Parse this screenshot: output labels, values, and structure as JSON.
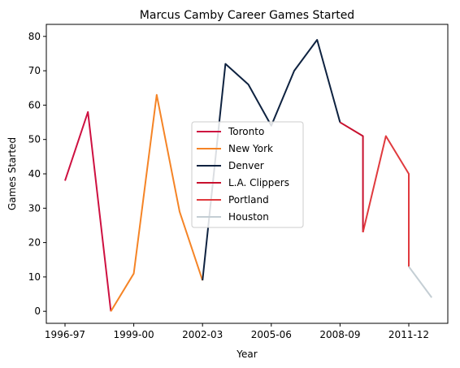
{
  "chart_data": {
    "type": "line",
    "title": "Marcus Camby Career Games Started",
    "xlabel": "Year",
    "ylabel": "Games Started",
    "x": [
      "1996-97",
      "1997-98",
      "1998-99",
      "1999-00",
      "2000-01",
      "2001-02",
      "2002-03",
      "2003-04",
      "2004-05",
      "2005-06",
      "2006-07",
      "2007-08",
      "2008-09",
      "2009-10",
      "2010-11",
      "2011-12",
      "2012-13"
    ],
    "xticks": [
      "1996-97",
      "1999-00",
      "2002-03",
      "2005-06",
      "2008-09",
      "2011-12"
    ],
    "yticks": [
      0,
      10,
      20,
      30,
      40,
      50,
      60,
      70,
      80
    ],
    "ylim": [
      -3.5,
      83.5
    ],
    "grid": false,
    "legend_position": "center",
    "series": [
      {
        "name": "Toronto",
        "color": "#ce1141",
        "points": [
          [
            "1996-97",
            38
          ],
          [
            "1997-98",
            58
          ],
          [
            "1998-99",
            0
          ]
        ]
      },
      {
        "name": "New York",
        "color": "#f58426",
        "points": [
          [
            "1998-99",
            0
          ],
          [
            "1999-00",
            11
          ],
          [
            "2000-01",
            63
          ],
          [
            "2001-02",
            29
          ],
          [
            "2002-03",
            9
          ]
        ]
      },
      {
        "name": "Denver",
        "color": "#0e2240",
        "points": [
          [
            "2002-03",
            9
          ],
          [
            "2003-04",
            72
          ],
          [
            "2004-05",
            66
          ],
          [
            "2005-06",
            54
          ],
          [
            "2006-07",
            70
          ],
          [
            "2007-08",
            79
          ],
          [
            "2008-09",
            55
          ]
        ]
      },
      {
        "name": "L.A. Clippers",
        "color": "#c8102e",
        "points": [
          [
            "2008-09",
            55
          ],
          [
            "2009-10",
            51
          ],
          [
            "2009-10",
            23
          ]
        ]
      },
      {
        "name": "Portland",
        "color": "#e03a3e",
        "points": [
          [
            "2009-10",
            23
          ],
          [
            "2010-11",
            51
          ],
          [
            "2011-12",
            40
          ],
          [
            "2011-12",
            13
          ]
        ]
      },
      {
        "name": "Houston",
        "color": "#c4ced4",
        "points": [
          [
            "2011-12",
            13
          ],
          [
            "2012-13",
            4
          ]
        ]
      }
    ]
  }
}
